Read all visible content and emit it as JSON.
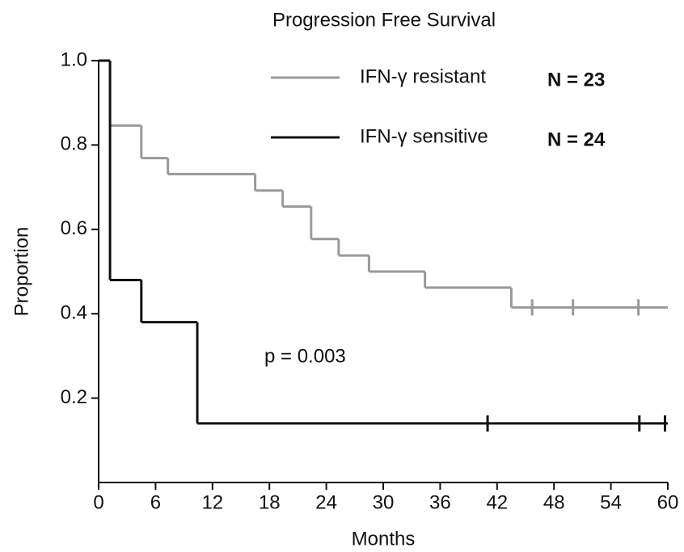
{
  "chart_data": {
    "type": "step",
    "title": "Progression Free Survival",
    "xlabel": "Months",
    "ylabel": "Proportion",
    "xlim": [
      0,
      60
    ],
    "xticks": [
      0,
      6,
      12,
      18,
      24,
      30,
      36,
      42,
      48,
      54,
      60
    ],
    "ylim": [
      0,
      1
    ],
    "yticks": [
      0.2,
      0.4,
      0.6,
      {
        "value": 0.8,
        "label": "0.8"
      },
      {
        "value": 1,
        "label": "1.0"
      }
    ],
    "annotation": "p = 0.003",
    "series": [
      {
        "name": "IFN-γ resistant",
        "n_label": "N = 23",
        "color": "#999999",
        "x": [
          0,
          1.2,
          4.5,
          7.3,
          16.5,
          19.4,
          22.4,
          25.3,
          28.5,
          34.4,
          43.5,
          60
        ],
        "values": [
          1,
          0.846,
          0.769,
          0.731,
          0.692,
          0.654,
          0.577,
          0.538,
          0.5,
          0.462,
          0.415,
          0.415
        ],
        "censored": {
          "x": [
            45.7,
            50,
            56.9
          ],
          "values": [
            0.415,
            0.415,
            0.415
          ]
        }
      },
      {
        "name": "IFN-γ sensitive",
        "n_label": "N = 24",
        "color": "#111111",
        "x": [
          0,
          1.2,
          4.5,
          10.4,
          60
        ],
        "values": [
          1,
          0.48,
          0.38,
          0.14,
          0.14
        ],
        "censored": {
          "x": [
            41,
            57,
            59.7
          ],
          "values": [
            0.14,
            0.14,
            0.14
          ]
        }
      }
    ]
  }
}
